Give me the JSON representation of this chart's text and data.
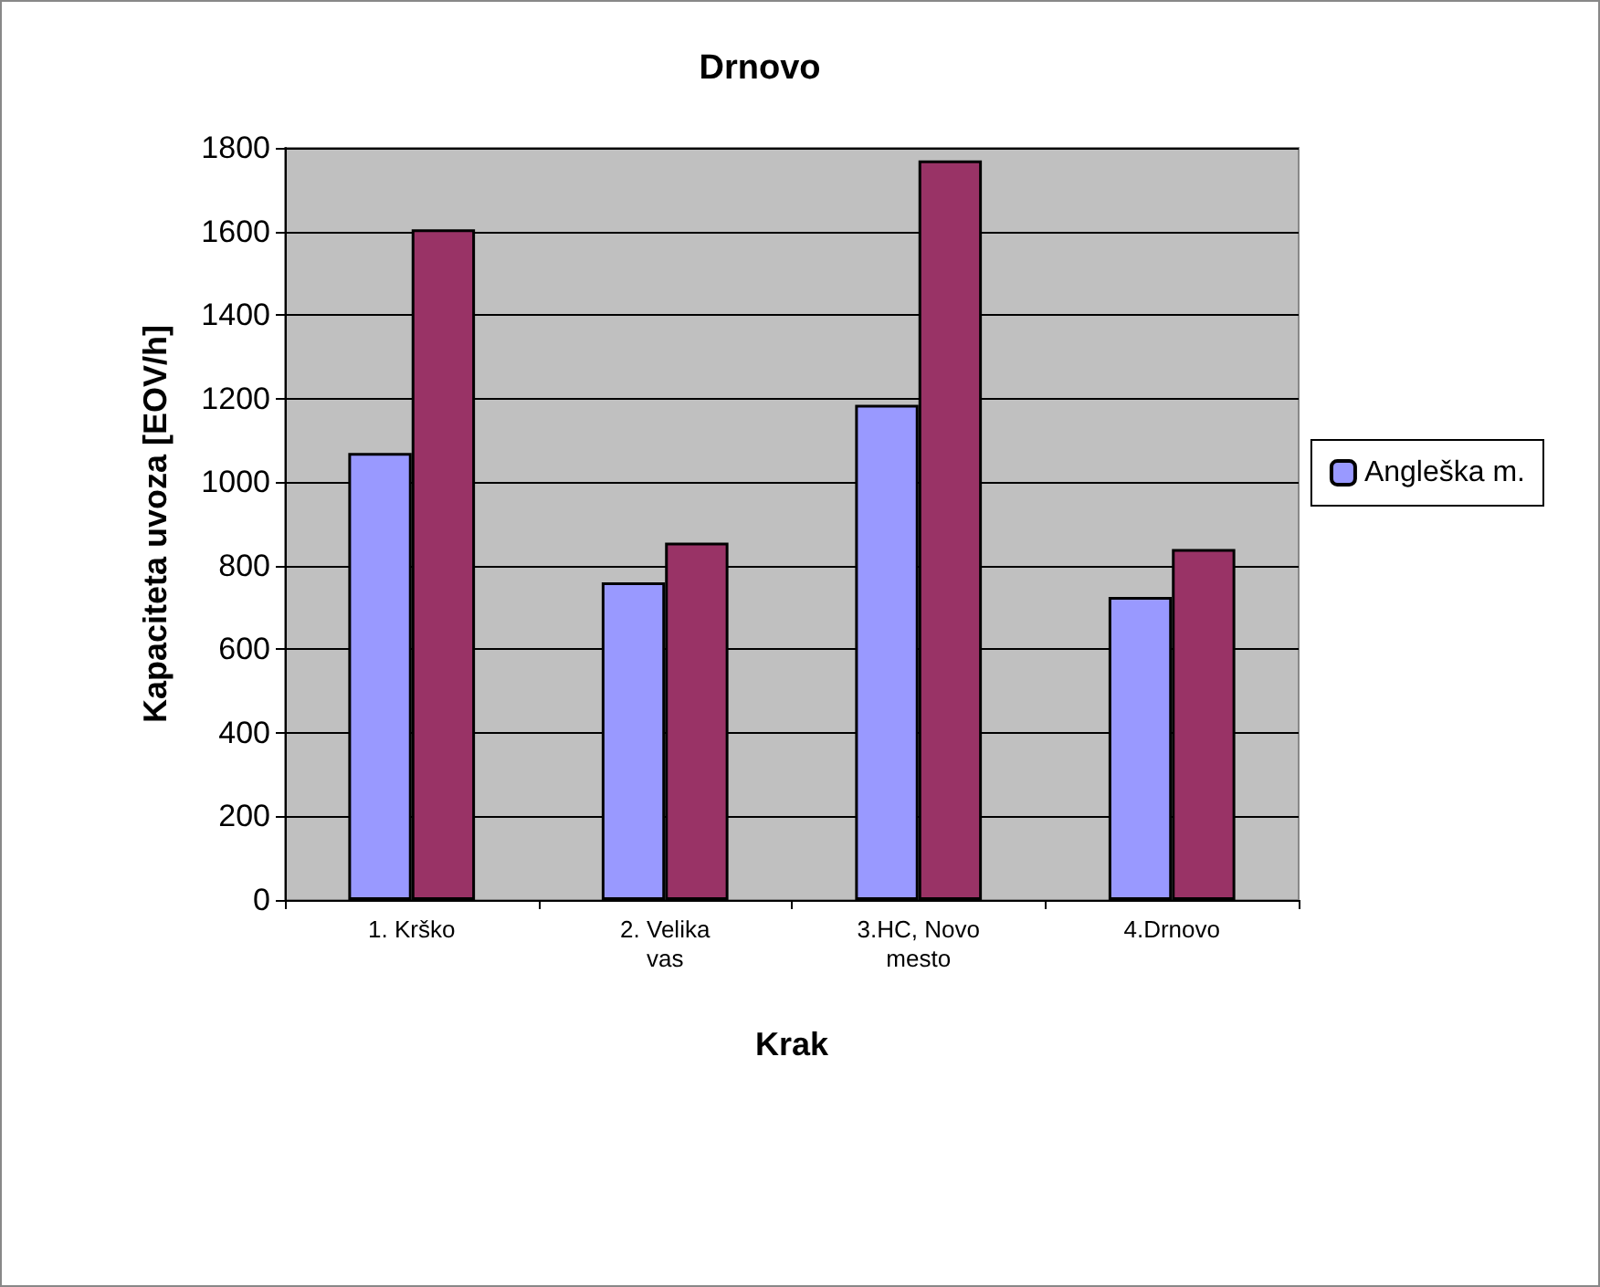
{
  "chart_data": {
    "type": "bar",
    "title": "Drnovo",
    "xlabel": "Krak",
    "ylabel": "Kapaciteta uvoza [EOV/h]",
    "categories": [
      "1. Krško",
      "2. Velika\nvas",
      "3.HC, Novo\nmesto",
      "4.Drnovo"
    ],
    "series": [
      {
        "name": "Angleška m.",
        "color": "#9999ff",
        "values": [
          1070,
          760,
          1185,
          725
        ]
      },
      {
        "color": "#993366",
        "values": [
          1605,
          855,
          1770,
          840
        ]
      }
    ],
    "ylim": [
      0,
      1800
    ],
    "yticks": [
      0,
      200,
      400,
      600,
      800,
      1000,
      1200,
      1400,
      1600,
      1800
    ],
    "grid": "y",
    "legend": "right"
  }
}
